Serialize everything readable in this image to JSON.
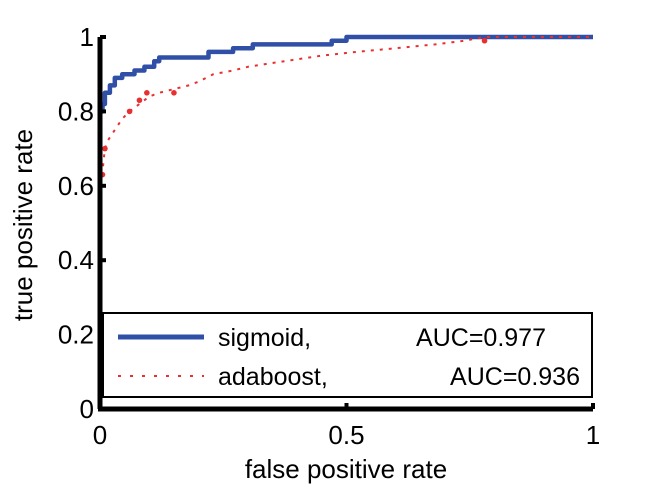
{
  "chart_data": {
    "type": "line",
    "xlabel": "false positive rate",
    "ylabel": "true positive rate",
    "xlim": [
      0,
      1
    ],
    "ylim": [
      0,
      1
    ],
    "x_ticks": [
      "0",
      "0.5",
      "1"
    ],
    "y_ticks": [
      "0",
      "0.2",
      "0.4",
      "0.6",
      "0.8",
      "1"
    ],
    "grid": false,
    "legend_position": "bottom-right",
    "series": [
      {
        "name": "sigmoid,",
        "auc_label": "AUC=0.977",
        "color": "#3050a8",
        "style": "solid",
        "points": [
          [
            0,
            0
          ],
          [
            0,
            0.8
          ],
          [
            0.005,
            0.8
          ],
          [
            0.005,
            0.82
          ],
          [
            0.01,
            0.82
          ],
          [
            0.01,
            0.85
          ],
          [
            0.02,
            0.85
          ],
          [
            0.02,
            0.87
          ],
          [
            0.03,
            0.87
          ],
          [
            0.03,
            0.89
          ],
          [
            0.045,
            0.89
          ],
          [
            0.045,
            0.9
          ],
          [
            0.07,
            0.9
          ],
          [
            0.07,
            0.91
          ],
          [
            0.09,
            0.91
          ],
          [
            0.09,
            0.92
          ],
          [
            0.11,
            0.92
          ],
          [
            0.11,
            0.935
          ],
          [
            0.12,
            0.935
          ],
          [
            0.12,
            0.945
          ],
          [
            0.22,
            0.945
          ],
          [
            0.22,
            0.96
          ],
          [
            0.27,
            0.96
          ],
          [
            0.27,
            0.97
          ],
          [
            0.31,
            0.97
          ],
          [
            0.31,
            0.98
          ],
          [
            0.47,
            0.98
          ],
          [
            0.47,
            0.99
          ],
          [
            0.5,
            0.99
          ],
          [
            0.5,
            1.0
          ],
          [
            1.0,
            1.0
          ]
        ]
      },
      {
        "name": "adaboost,",
        "auc_label": "AUC=0.936",
        "color": "#e83030",
        "style": "dotted",
        "points": [
          [
            0,
            0
          ],
          [
            0,
            0.6
          ],
          [
            0.005,
            0.64
          ],
          [
            0.01,
            0.7
          ],
          [
            0.015,
            0.72
          ],
          [
            0.03,
            0.75
          ],
          [
            0.045,
            0.78
          ],
          [
            0.06,
            0.8
          ],
          [
            0.08,
            0.82
          ],
          [
            0.1,
            0.84
          ],
          [
            0.12,
            0.85
          ],
          [
            0.15,
            0.86
          ],
          [
            0.18,
            0.87
          ],
          [
            0.2,
            0.88
          ],
          [
            0.23,
            0.9
          ],
          [
            0.27,
            0.91
          ],
          [
            0.3,
            0.92
          ],
          [
            0.35,
            0.93
          ],
          [
            0.4,
            0.94
          ],
          [
            0.45,
            0.95
          ],
          [
            0.52,
            0.96
          ],
          [
            0.6,
            0.97
          ],
          [
            0.68,
            0.98
          ],
          [
            0.74,
            0.99
          ],
          [
            0.78,
            1.0
          ],
          [
            1.0,
            1.0
          ]
        ],
        "markers": [
          [
            0.005,
            0.63
          ],
          [
            0.01,
            0.7
          ],
          [
            0.06,
            0.8
          ],
          [
            0.08,
            0.83
          ],
          [
            0.095,
            0.85
          ],
          [
            0.15,
            0.85
          ],
          [
            0.78,
            0.99
          ]
        ]
      }
    ]
  }
}
